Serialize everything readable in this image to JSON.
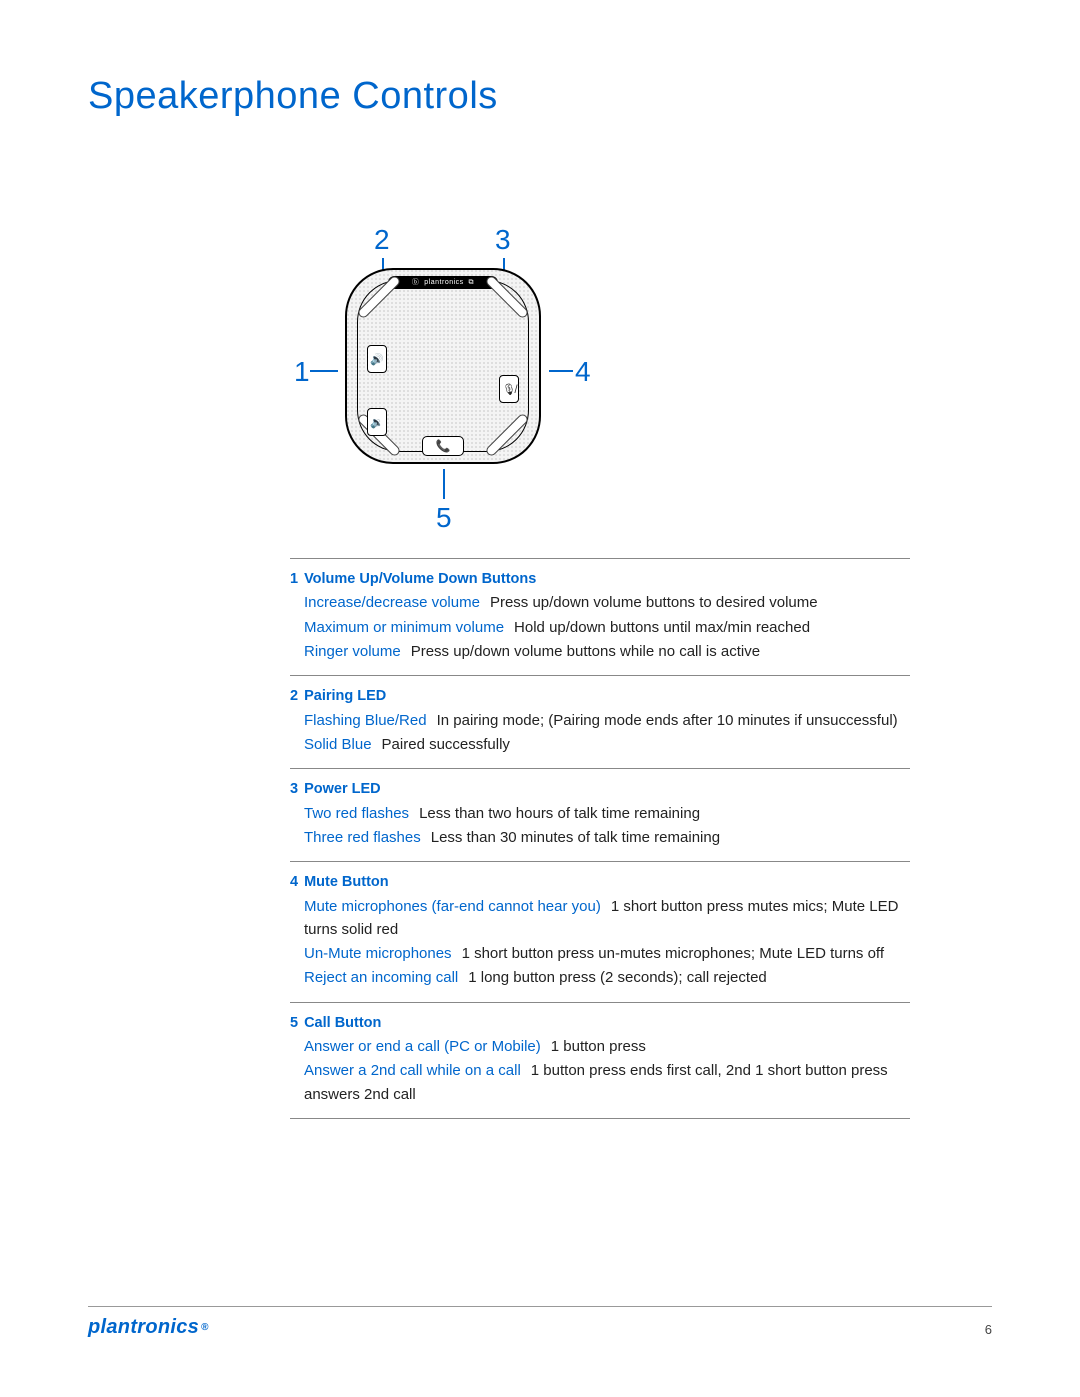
{
  "title": "Speakerphone Controls",
  "brand": "plantronics",
  "page_number": "6",
  "colors": {
    "accent": "#0066cc",
    "text": "#222222",
    "rule": "#888888"
  },
  "callouts_font_size": 28,
  "callouts": {
    "c1": "1",
    "c2": "2",
    "c3": "3",
    "c4": "4",
    "c5": "5"
  },
  "sections": [
    {
      "num": "1",
      "label": "Volume Up/Volume Down Buttons",
      "items": [
        {
          "key": "Increase/decrease volume",
          "val": "Press up/down volume buttons to desired volume"
        },
        {
          "key": "Maximum or minimum volume",
          "val": "Hold up/down buttons until max/min reached"
        },
        {
          "key": "Ringer volume",
          "val": "Press up/down volume buttons while no call is active"
        }
      ]
    },
    {
      "num": "2",
      "label": "Pairing LED",
      "items": [
        {
          "key": "Flashing Blue/Red",
          "val": "In pairing mode; (Pairing mode ends after 10 minutes if unsuccessful)"
        },
        {
          "key": "Solid Blue",
          "val": "Paired successfully"
        }
      ]
    },
    {
      "num": "3",
      "label": "Power LED",
      "items": [
        {
          "key": "Two red flashes",
          "val": "Less than two hours of talk time remaining"
        },
        {
          "key": "Three red flashes",
          "val": "Less than 30 minutes of talk time remaining"
        }
      ]
    },
    {
      "num": "4",
      "label": "Mute Button",
      "items": [
        {
          "key": "Mute microphones (far-end cannot hear you)",
          "val": "1 short button press mutes mics; Mute LED turns solid red"
        },
        {
          "key": "Un-Mute microphones",
          "val": "1 short button press un-mutes microphones; Mute LED turns off"
        },
        {
          "key": "Reject an incoming call",
          "val": "1 long button press (2 seconds); call rejected"
        }
      ]
    },
    {
      "num": "5",
      "label": "Call Button",
      "items": [
        {
          "key": "Answer or end a call (PC or Mobile)",
          "val": "1 button press"
        },
        {
          "key": "Answer a 2nd call while on a call",
          "val": "1 button press ends first call, 2nd 1 short button press answers 2nd call"
        }
      ]
    }
  ]
}
